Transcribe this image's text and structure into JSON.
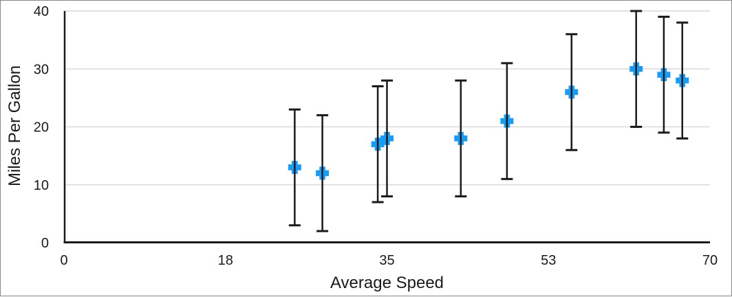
{
  "chart_data": {
    "type": "scatter",
    "title": "",
    "xlabel": "Average Speed",
    "ylabel": "Miles Per Gallon",
    "xlim": [
      0,
      70
    ],
    "ylim": [
      0,
      40
    ],
    "x_ticks": {
      "positions": [
        0,
        17.5,
        35,
        52.5,
        70
      ],
      "labels": [
        "0",
        "18",
        "35",
        "53",
        "70"
      ]
    },
    "y_ticks": {
      "positions": [
        0,
        10,
        20,
        30,
        40
      ],
      "labels": [
        "0",
        "10",
        "20",
        "30",
        "40"
      ]
    },
    "grid": "horizontal",
    "legend": "none",
    "series": [
      {
        "name": "Miles Per Gallon",
        "marker": "plus",
        "marker_color": "#189CF4",
        "error_bars": {
          "direction": "both",
          "value": 10
        },
        "points": [
          {
            "x": 25,
            "y": 13
          },
          {
            "x": 28,
            "y": 12
          },
          {
            "x": 34,
            "y": 17
          },
          {
            "x": 35,
            "y": 18
          },
          {
            "x": 43,
            "y": 18
          },
          {
            "x": 48,
            "y": 21
          },
          {
            "x": 55,
            "y": 26
          },
          {
            "x": 62,
            "y": 30
          },
          {
            "x": 65,
            "y": 29
          },
          {
            "x": 67,
            "y": 28
          }
        ]
      }
    ],
    "colors": {
      "marker": "#189CF4",
      "error_bar": "#1a1a1a",
      "axis": "#1a1a1a",
      "grid": "#d9d9d9",
      "text": "#1a1a1a",
      "frame_border": "#878787",
      "background": "#ffffff"
    }
  }
}
